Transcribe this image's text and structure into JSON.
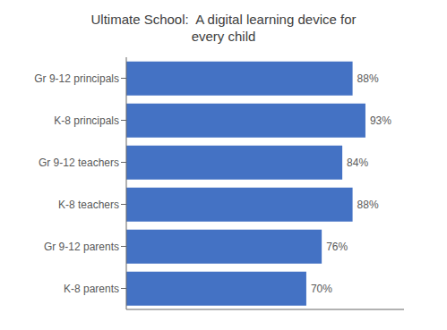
{
  "chart_data": {
    "type": "bar",
    "title": "Ultimate School:  A digital learning device for\nevery child",
    "categories": [
      "K-8 parents",
      "Gr 9-12 parents",
      "K-8 teachers",
      "Gr 9-12 teachers",
      "K-8 principals",
      "Gr 9-12 principals"
    ],
    "values": [
      70,
      76,
      88,
      84,
      93,
      88
    ],
    "value_labels": [
      "70%",
      "76%",
      "88%",
      "84%",
      "93%",
      "88%"
    ],
    "color": "#4472C4",
    "orientation": "horizontal",
    "xlim": [
      0,
      108
    ],
    "data_labels": true,
    "tick_labels": "y",
    "grid": false
  }
}
